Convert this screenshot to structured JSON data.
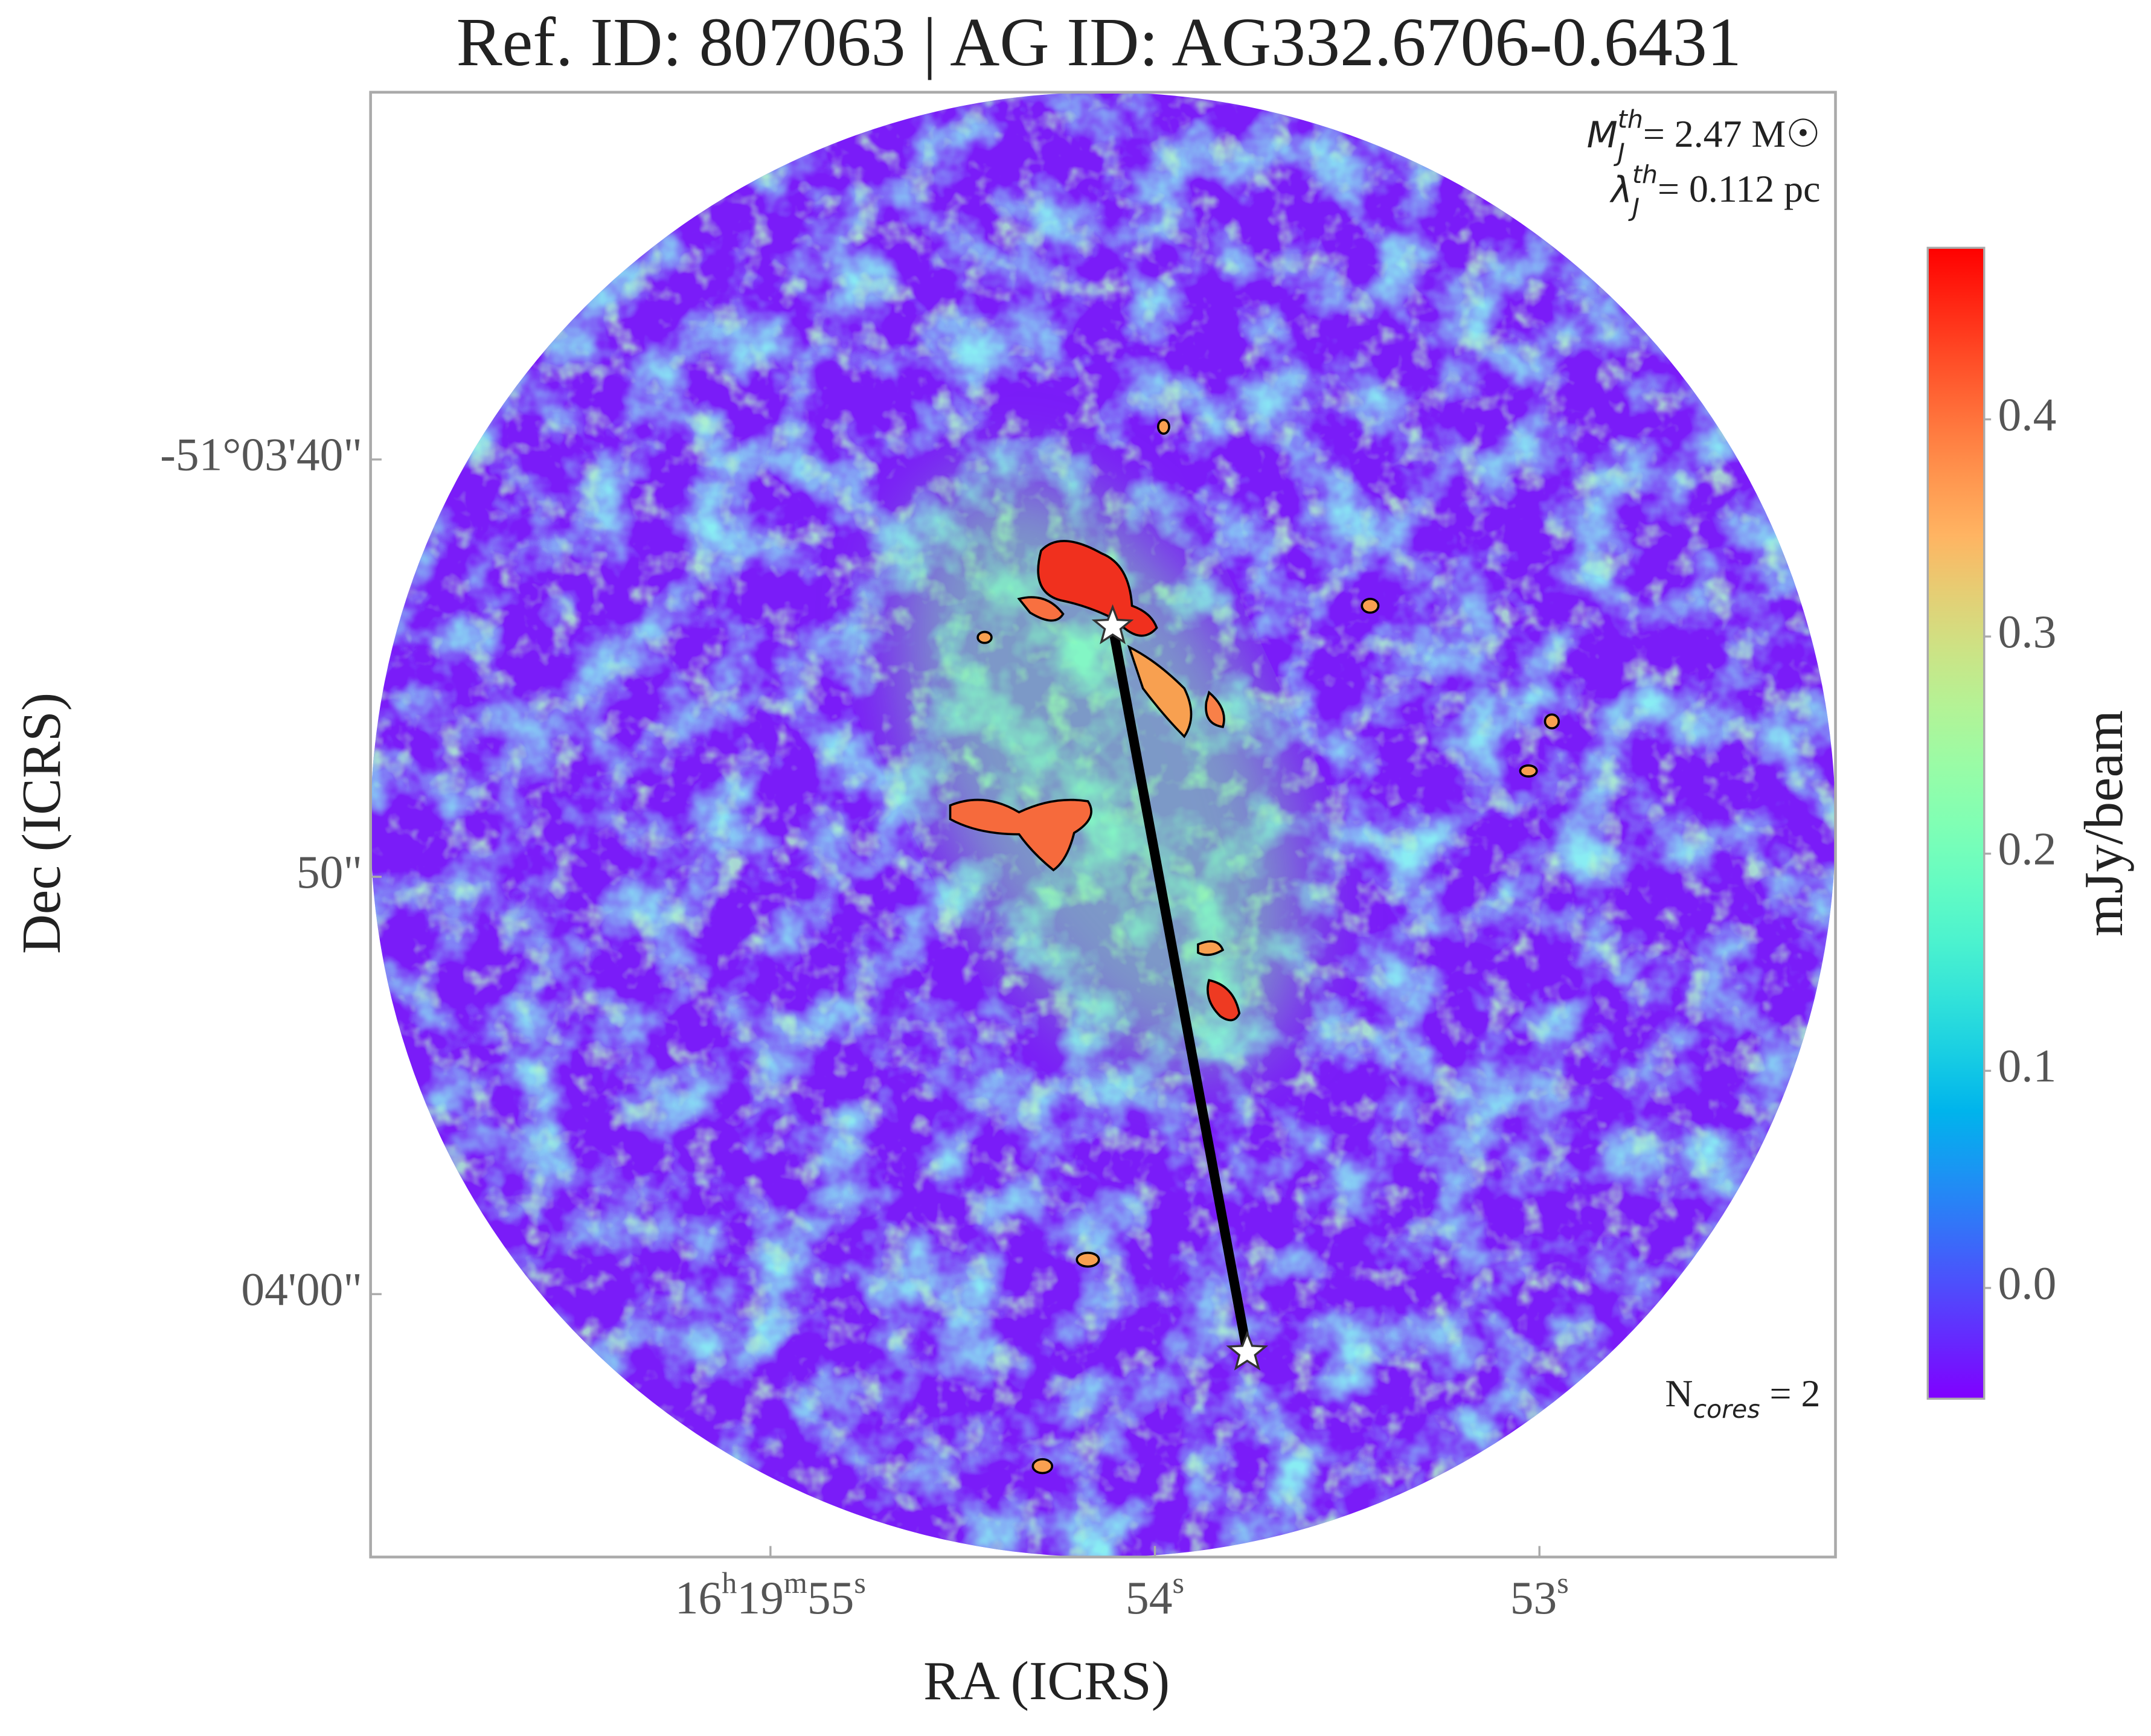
{
  "chart_data": {
    "type": "image",
    "title": "Ref. ID: 807063 | AG ID: AG332.6706-0.6431",
    "xlabel": "RA (ICRS)",
    "ylabel": "Dec (ICRS)",
    "xlim": [
      56.04,
      52.23
    ],
    "ylim": [
      66.3,
      31.2
    ],
    "xticks": [
      {
        "value": 55,
        "label": "16h19m55s"
      },
      {
        "value": 54,
        "label": "54s"
      },
      {
        "value": 53,
        "label": "53s"
      }
    ],
    "yticks": [
      {
        "value": 40,
        "label": "-51°03'40\""
      },
      {
        "value": 50,
        "label": "50\""
      },
      {
        "value": 60,
        "label": "04'00\""
      }
    ],
    "colormap": "rainbow",
    "colorbar": {
      "label": "mJy/beam",
      "clim": [
        -0.051,
        0.479
      ],
      "ticks": [
        {
          "value": 0,
          "label": "0.0"
        },
        0.1,
        0.2,
        0.3,
        0.4
      ]
    },
    "cores": {
      "x": [
        54.11,
        53.76
      ],
      "y": [
        44.0,
        61.4
      ],
      "color": "#ffffff",
      "line_color": "#000000"
    },
    "annotations": [
      {
        "base": "M",
        "sub": "J",
        "sup": "th",
        "text": "= 2.47 M☉"
      },
      {
        "base": "λ",
        "sub": "J",
        "sup": "th",
        "text": "= 0.112 pc"
      },
      {
        "base": "N",
        "sub": "cores",
        "text": " = 2"
      }
    ]
  }
}
